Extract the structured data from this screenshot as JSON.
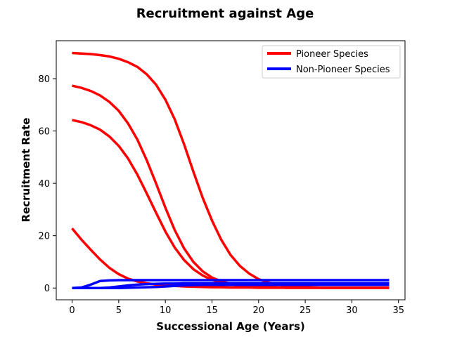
{
  "chart_data": {
    "type": "line",
    "title": "Recruitment against Age",
    "xlabel": "Successional Age (Years)",
    "ylabel": "Recruitment Rate",
    "xlim": [
      -1.7,
      35.7
    ],
    "ylim": [
      -4.5,
      94.5
    ],
    "xticks": [
      0,
      5,
      10,
      15,
      20,
      25,
      30,
      35
    ],
    "yticks": [
      0,
      20,
      40,
      60,
      80
    ],
    "grid": false,
    "legend_position": "top-right",
    "legend": [
      {
        "label": "Pioneer Species",
        "color": "#ff0000"
      },
      {
        "label": "Non-Pioneer Species",
        "color": "#0000ff"
      }
    ],
    "x": [
      0,
      1,
      2,
      3,
      4,
      5,
      6,
      7,
      8,
      9,
      10,
      11,
      12,
      13,
      14,
      15,
      16,
      17,
      18,
      19,
      20,
      21,
      22,
      23,
      24,
      25,
      26,
      27,
      28,
      29,
      30,
      31,
      32,
      33,
      34
    ],
    "series": [
      {
        "group": "Pioneer Species",
        "color": "#ff0000",
        "values": [
          89.8,
          89.6,
          89.4,
          89.0,
          88.5,
          87.6,
          86.3,
          84.5,
          81.7,
          77.7,
          72.0,
          64.5,
          55.0,
          44.5,
          34.5,
          25.8,
          18.4,
          12.6,
          8.4,
          5.5,
          3.4,
          2.1,
          1.3,
          0.8,
          0.5,
          0.3,
          0.2,
          0.1,
          0.1,
          0.1,
          0.1,
          0.1,
          0.1,
          0.1,
          0.1
        ]
      },
      {
        "group": "Pioneer Species",
        "color": "#ff0000",
        "values": [
          77.3,
          76.5,
          75.3,
          73.6,
          71.1,
          67.7,
          62.9,
          56.7,
          48.9,
          40.0,
          30.7,
          22.2,
          15.2,
          10.0,
          6.4,
          4.0,
          2.5,
          1.6,
          1.0,
          0.6,
          0.4,
          0.3,
          0.2,
          0.1,
          0.1,
          0.1,
          0.1,
          0.1,
          0.1,
          0.1,
          0.1,
          0.1,
          0.1,
          0.1,
          0.1
        ]
      },
      {
        "group": "Pioneer Species",
        "color": "#ff0000",
        "values": [
          64.2,
          63.4,
          62.2,
          60.5,
          57.9,
          54.3,
          49.5,
          43.3,
          36.2,
          28.8,
          21.6,
          15.5,
          10.7,
          7.2,
          4.8,
          3.1,
          2.0,
          1.3,
          0.9,
          0.6,
          0.4,
          0.3,
          0.2,
          0.1,
          0.1,
          0.1,
          0.1,
          0.1,
          0.1,
          0.1,
          0.1,
          0.1,
          0.1,
          0.1,
          0.1
        ]
      },
      {
        "group": "Pioneer Species",
        "color": "#ff0000",
        "values": [
          22.8,
          18.5,
          14.6,
          10.9,
          7.7,
          5.3,
          3.6,
          2.5,
          1.8,
          1.3,
          1.0,
          0.8,
          0.6,
          0.5,
          0.4,
          0.3,
          0.3,
          0.2,
          0.2,
          0.2,
          0.1,
          0.1,
          0.1,
          0.1,
          0.1,
          0.1,
          0.1,
          0.1,
          0.1,
          0.1,
          0.1,
          0.1,
          0.1,
          0.1,
          0.1
        ]
      },
      {
        "group": "Non-Pioneer Species",
        "color": "#0000ff",
        "values": [
          0.0,
          0.2,
          1.3,
          2.7,
          2.9,
          3.0,
          3.0,
          3.0,
          3.0,
          3.0,
          3.0,
          3.0,
          3.0,
          3.0,
          3.0,
          3.0,
          3.0,
          3.0,
          3.0,
          3.0,
          3.0,
          3.0,
          3.0,
          3.0,
          3.0,
          3.0,
          3.0,
          3.0,
          3.0,
          3.0,
          3.0,
          3.0,
          3.0,
          3.0,
          3.0
        ]
      },
      {
        "group": "Non-Pioneer Species",
        "color": "#0000ff",
        "values": [
          0.0,
          0.0,
          0.0,
          0.0,
          0.2,
          0.6,
          1.0,
          1.3,
          1.5,
          1.6,
          1.7,
          1.7,
          1.8,
          1.8,
          1.8,
          1.8,
          1.8,
          1.8,
          1.8,
          1.8,
          1.8,
          1.8,
          1.8,
          1.8,
          1.8,
          1.8,
          1.8,
          1.8,
          1.8,
          1.8,
          1.8,
          1.8,
          1.8,
          1.8,
          1.8
        ]
      },
      {
        "group": "Non-Pioneer Species",
        "color": "#0000ff",
        "values": [
          0.0,
          0.0,
          0.0,
          0.0,
          0.0,
          0.0,
          0.1,
          0.2,
          0.3,
          0.4,
          0.6,
          0.8,
          1.0,
          1.1,
          1.2,
          1.2,
          1.2,
          1.2,
          1.2,
          1.2,
          1.2,
          1.2,
          1.2,
          1.2,
          1.2,
          1.2,
          1.2,
          1.2,
          1.2,
          1.2,
          1.2,
          1.2,
          1.2,
          1.2,
          1.2
        ]
      }
    ]
  }
}
